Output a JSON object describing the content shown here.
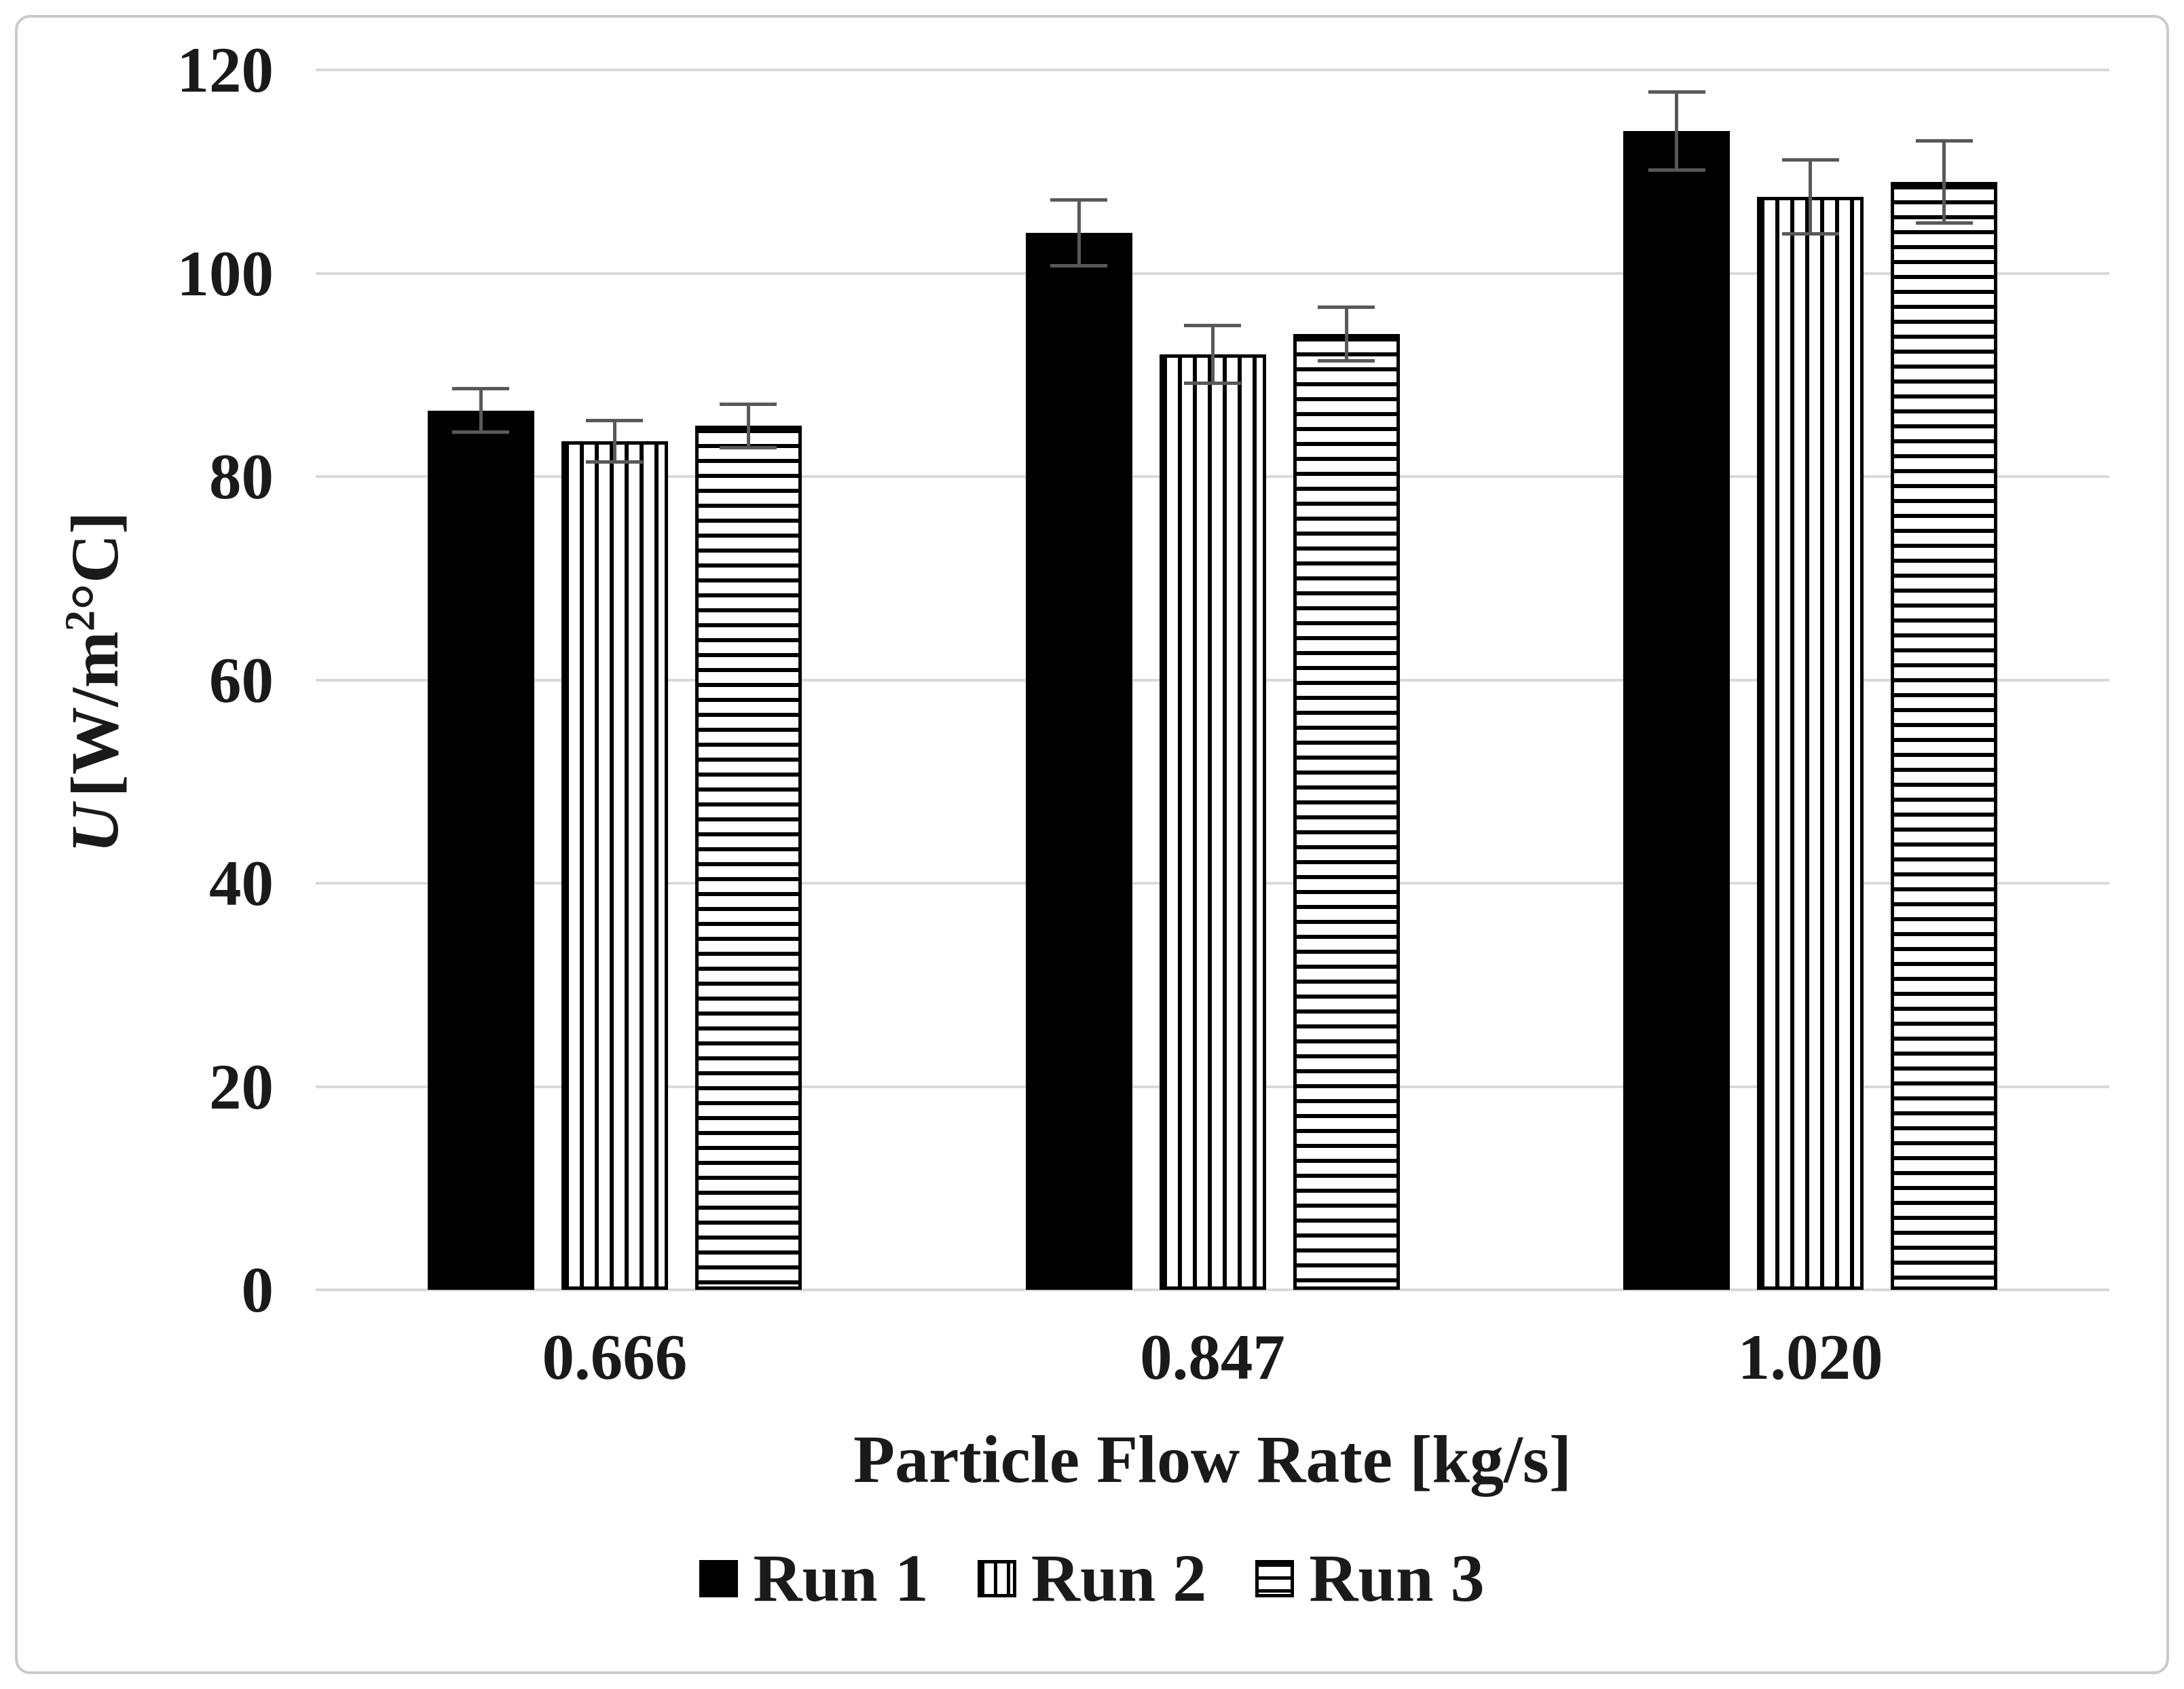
{
  "figure": {
    "background_color": "#ffffff",
    "border_color": "#c9c9c9",
    "gridline_color": "#d9d9d9",
    "bar_color": "#000000",
    "error_bar_color": "#595959",
    "text_color": "#1a1a1a"
  },
  "chart_data": {
    "type": "bar",
    "title": "",
    "categories": [
      "0.666",
      "0.847",
      "1.020"
    ],
    "series": [
      {
        "name": "Run 1",
        "pattern": "solid",
        "values": [
          86.5,
          104.0,
          114.0
        ],
        "errors": [
          2.3,
          3.4,
          4.0
        ]
      },
      {
        "name": "Run 2",
        "pattern": "vertical-stripes",
        "values": [
          83.5,
          92.0,
          107.5
        ],
        "errors": [
          2.2,
          3.0,
          3.8
        ]
      },
      {
        "name": "Run 3",
        "pattern": "horizontal-stripes",
        "values": [
          85.0,
          94.0,
          109.0
        ],
        "errors": [
          2.3,
          2.8,
          4.2
        ]
      }
    ],
    "xlabel": "Particle Flow Rate [kg/s]",
    "ylabel": "U [W/m²°C]",
    "ylabel_parts": {
      "symbol": "U",
      "unit_open": "[W/m",
      "sup": "2",
      "unit_close": "°C]"
    },
    "ylim": [
      0,
      120
    ],
    "yticks": [
      "0",
      "20",
      "40",
      "60",
      "80",
      "100",
      "120"
    ],
    "grid": true,
    "legend_position": "bottom-center",
    "error_bars": true
  }
}
